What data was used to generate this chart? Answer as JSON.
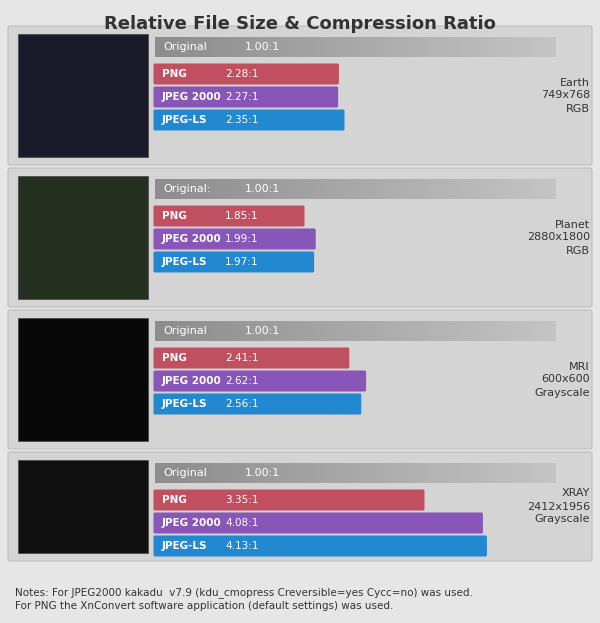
{
  "title": "Relative File Size & Compression Ratio",
  "title_fontsize": 13,
  "background_color": "#e6e6e6",
  "panel_bg": "#d8d8d8",
  "notes": "Notes: For JPEG2000 kakadu  v7.9 (kdu_cmopress Creversible=yes Cycc=no) was used.\nFor PNG the XnConvert software application (default settings) was used.",
  "images": [
    {
      "label": "Earth\n749x768\nRGB",
      "original_label": "Original",
      "original_ratio": "1.00:1",
      "bars": [
        {
          "name": "PNG",
          "value": 2.28,
          "label": "2.28:1",
          "color": "#c05060"
        },
        {
          "name": "JPEG 2000",
          "value": 2.27,
          "label": "2.27:1",
          "color": "#8855b8"
        },
        {
          "name": "JPEG-LS",
          "value": 2.35,
          "label": "2.35:1",
          "color": "#2288d0"
        }
      ]
    },
    {
      "label": "Planet\n2880x1800\nRGB",
      "original_label": "Original:",
      "original_ratio": "1.00:1",
      "bars": [
        {
          "name": "PNG",
          "value": 1.85,
          "label": "1.85:1",
          "color": "#c05060"
        },
        {
          "name": "JPEG 2000",
          "value": 1.99,
          "label": "1.99:1",
          "color": "#8855b8"
        },
        {
          "name": "JPEG-LS",
          "value": 1.97,
          "label": "1.97:1",
          "color": "#2288d0"
        }
      ]
    },
    {
      "label": "MRI\n600x600\nGrayscale",
      "original_label": "Original",
      "original_ratio": "1.00:1",
      "bars": [
        {
          "name": "PNG",
          "value": 2.41,
          "label": "2.41:1",
          "color": "#c05060"
        },
        {
          "name": "JPEG 2000",
          "value": 2.62,
          "label": "2.62:1",
          "color": "#8855b8"
        },
        {
          "name": "JPEG-LS",
          "value": 2.56,
          "label": "2.56:1",
          "color": "#2288d0"
        }
      ]
    },
    {
      "label": "XRAY\n2412x1956\nGrayscale",
      "original_label": "Original",
      "original_ratio": "1.00:1",
      "bars": [
        {
          "name": "PNG",
          "value": 3.35,
          "label": "3.35:1",
          "color": "#c05060"
        },
        {
          "name": "JPEG 2000",
          "value": 4.08,
          "label": "4.08:1",
          "color": "#8855b8"
        },
        {
          "name": "JPEG-LS",
          "value": 4.13,
          "label": "4.13:1",
          "color": "#2288d0"
        }
      ]
    }
  ],
  "bar_scale_max": 5.0,
  "img_placeholder_colors": [
    "#1a1a2a",
    "#253020",
    "#080808",
    "#101010"
  ]
}
